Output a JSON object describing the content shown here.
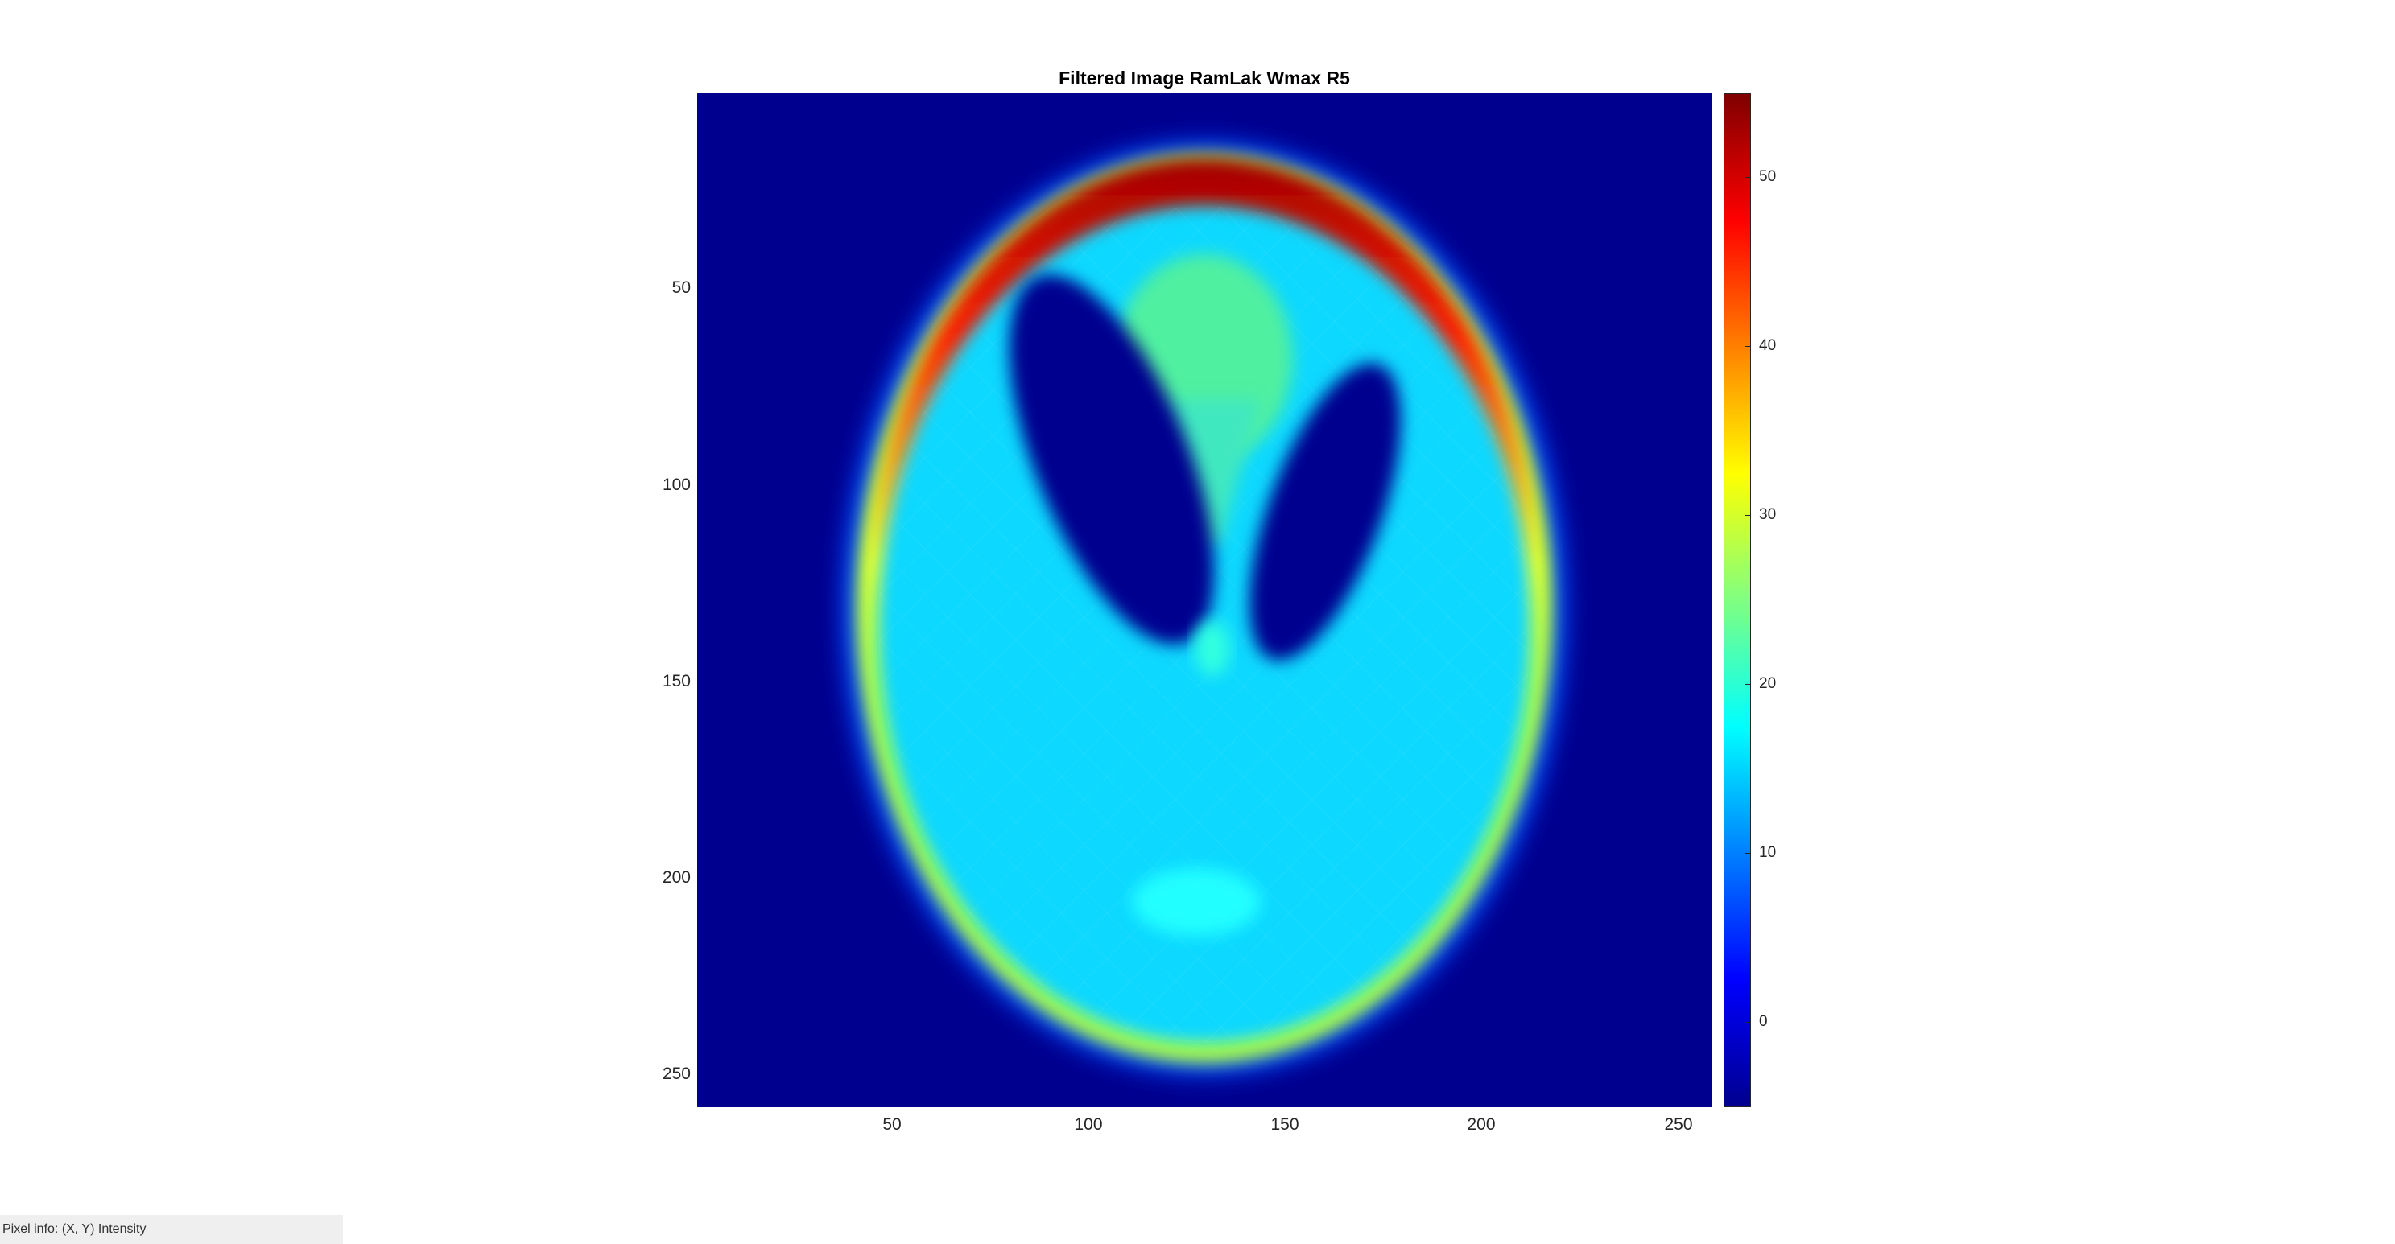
{
  "figure": {
    "title": "Filtered Image RamLak Wmax R5"
  },
  "image_axes": {
    "y_ticks": [
      "50",
      "100",
      "150",
      "200",
      "250"
    ],
    "x_ticks": [
      "50",
      "100",
      "150",
      "200",
      "250"
    ],
    "x_range": [
      0.5,
      258.5
    ],
    "y_range": [
      0.5,
      258.5
    ],
    "colormap": "jet"
  },
  "colorbar": {
    "ticks": [
      "0",
      "10",
      "20",
      "30",
      "40",
      "50"
    ],
    "range": [
      -5,
      55
    ]
  },
  "status_bar": {
    "pixel_info_label": "Pixel info:",
    "pixel_info_value": "(X, Y)  Intensity"
  }
}
